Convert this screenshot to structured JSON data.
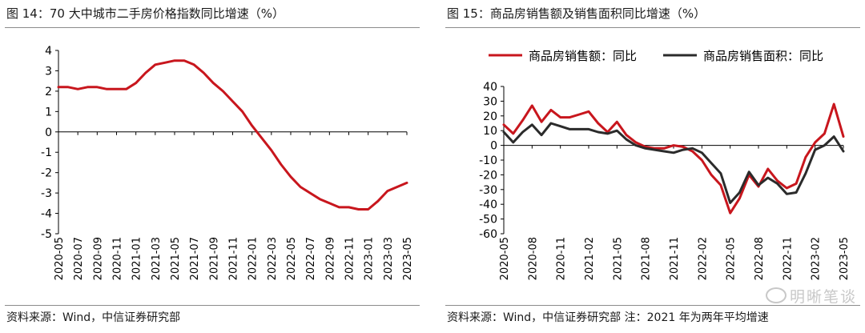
{
  "colors": {
    "red": "#c8161d",
    "dark": "#2b2b2b"
  },
  "left": {
    "title": "图 14：70 大中城市二手房价格指数同比增速（%）",
    "source": "资料来源：Wind，中信证券研究部"
  },
  "right": {
    "title": "图 15：商品房销售额及销售面积同比增速（%）",
    "source": "资料来源：Wind，中信证券研究部 注：2021 年为两年平均增速"
  },
  "watermark": "明晰笔谈",
  "chart_data": [
    {
      "type": "line",
      "title": "图 14：70 大中城市二手房价格指数同比增速（%）",
      "ylim": [
        -5,
        4
      ],
      "yticks": [
        4,
        3,
        2,
        1,
        0,
        -1,
        -2,
        -3,
        -4,
        -5
      ],
      "xtick_labels": [
        "2020-05",
        "2020-07",
        "2020-09",
        "2020-11",
        "2021-01",
        "2021-03",
        "2021-05",
        "2021-07",
        "2021-09",
        "2021-11",
        "2022-01",
        "2022-03",
        "2022-05",
        "2022-07",
        "2022-09",
        "2022-11",
        "2023-01",
        "2023-03",
        "2023-05"
      ],
      "x": [
        "2020-05",
        "2020-06",
        "2020-07",
        "2020-08",
        "2020-09",
        "2020-10",
        "2020-11",
        "2020-12",
        "2021-01",
        "2021-02",
        "2021-03",
        "2021-04",
        "2021-05",
        "2021-06",
        "2021-07",
        "2021-08",
        "2021-09",
        "2021-10",
        "2021-11",
        "2021-12",
        "2022-01",
        "2022-02",
        "2022-03",
        "2022-04",
        "2022-05",
        "2022-06",
        "2022-07",
        "2022-08",
        "2022-09",
        "2022-10",
        "2022-11",
        "2022-12",
        "2023-01",
        "2023-02",
        "2023-03",
        "2023-04",
        "2023-05"
      ],
      "series": [
        {
          "values": [
            2.2,
            2.2,
            2.1,
            2.2,
            2.2,
            2.1,
            2.1,
            2.1,
            2.4,
            2.9,
            3.3,
            3.4,
            3.5,
            3.5,
            3.3,
            2.9,
            2.4,
            2.0,
            1.5,
            1.0,
            0.3,
            -0.3,
            -0.9,
            -1.6,
            -2.2,
            -2.7,
            -3.0,
            -3.3,
            -3.5,
            -3.7,
            -3.7,
            -3.8,
            -3.8,
            -3.4,
            -2.9,
            -2.7,
            -2.5
          ],
          "color": "#c8161d"
        }
      ]
    },
    {
      "type": "line",
      "title": "图 15：商品房销售额及销售面积同比增速（%）",
      "ylim": [
        -60,
        40
      ],
      "yticks": [
        40,
        30,
        20,
        10,
        0,
        -10,
        -20,
        -30,
        -40,
        -50,
        -60
      ],
      "xtick_labels": [
        "2020-05",
        "2020-08",
        "2020-11",
        "2021-02",
        "2021-05",
        "2021-08",
        "2021-11",
        "2022-02",
        "2022-05",
        "2022-08",
        "2022-11",
        "2023-02",
        "2023-05"
      ],
      "x": [
        "2020-05",
        "2020-06",
        "2020-07",
        "2020-08",
        "2020-09",
        "2020-10",
        "2020-11",
        "2020-12",
        "2021-01",
        "2021-02",
        "2021-03",
        "2021-04",
        "2021-05",
        "2021-06",
        "2021-07",
        "2021-08",
        "2021-09",
        "2021-10",
        "2021-11",
        "2021-12",
        "2022-01",
        "2022-02",
        "2022-03",
        "2022-04",
        "2022-05",
        "2022-06",
        "2022-07",
        "2022-08",
        "2022-09",
        "2022-10",
        "2022-11",
        "2022-12",
        "2023-01",
        "2023-02",
        "2023-03",
        "2023-04",
        "2023-05"
      ],
      "legend": [
        "商品房销售额：同比",
        "商品房销售面积：同比"
      ],
      "series": [
        {
          "name": "商品房销售额：同比",
          "values": [
            14,
            8,
            17,
            27,
            16,
            24,
            19,
            19,
            21,
            23,
            15,
            9,
            16,
            7,
            2,
            -1,
            -2,
            -2,
            0,
            -1,
            -4,
            -10,
            -20,
            -27,
            -46,
            -36,
            -20,
            -28,
            -16,
            -24,
            -29,
            -26,
            -8,
            2,
            8,
            28,
            6
          ],
          "color": "#c8161d"
        },
        {
          "name": "商品房销售面积：同比",
          "values": [
            9,
            2,
            9,
            14,
            7,
            15,
            13,
            11,
            11,
            11,
            9,
            8,
            10,
            4,
            0,
            -2,
            -3,
            -4,
            -5,
            -3,
            -2,
            -5,
            -12,
            -19,
            -39,
            -32,
            -18,
            -27,
            -22,
            -26,
            -33,
            -32,
            -19,
            -3,
            0,
            6,
            -4
          ],
          "color": "#2b2b2b"
        }
      ]
    }
  ]
}
